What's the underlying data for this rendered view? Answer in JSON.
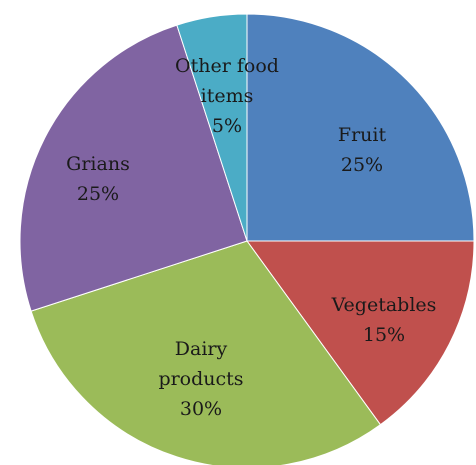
{
  "chart_data": {
    "type": "pie",
    "title": "",
    "start_angle_deg": 0,
    "direction": "clockwise",
    "slices": [
      {
        "label_lines": [
          "Fruit",
          "25%"
        ],
        "value": 25,
        "color": "#4F81BD"
      },
      {
        "label_lines": [
          "Vegetables",
          "15%"
        ],
        "value": 15,
        "color": "#C0504D"
      },
      {
        "label_lines": [
          "Dairy",
          "products",
          "30%"
        ],
        "value": 30,
        "color": "#9BBB59"
      },
      {
        "label_lines": [
          "Grians",
          "25%"
        ],
        "value": 25,
        "color": "#8064A2"
      },
      {
        "label_lines": [
          "Other food",
          "items",
          "5%"
        ],
        "value": 5,
        "color": "#4BACC6"
      }
    ]
  }
}
